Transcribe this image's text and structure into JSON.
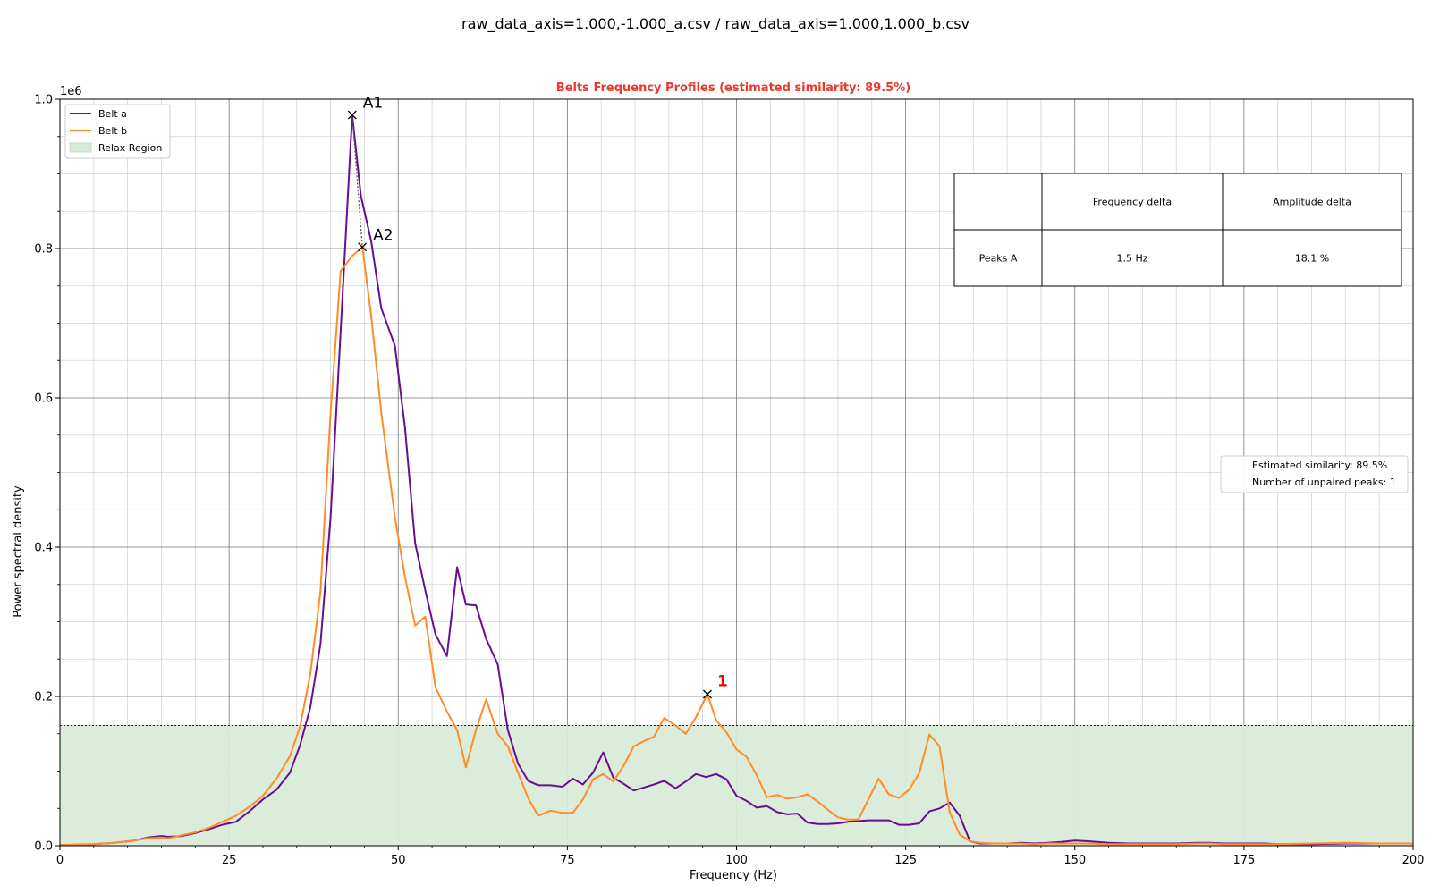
{
  "figure_title": "raw_data_axis=1.000,-1.000_a.csv / raw_data_axis=1.000,1.000_b.csv",
  "colors": {
    "belt_a": "#6a0d91",
    "belt_b": "#ff8c26",
    "relax_fill": "#d9ebd8",
    "relax_edge": "#b9d8b6",
    "title": "#e8392a",
    "unpaired": "#ff0000",
    "grid_major": "#777777",
    "grid_minor": "#d4d4d4"
  },
  "legend": {
    "items": [
      {
        "label": "Belt a",
        "kind": "line",
        "color_key": "belt_a"
      },
      {
        "label": "Belt b",
        "kind": "line",
        "color_key": "belt_b"
      },
      {
        "label": "Relax Region",
        "kind": "patch",
        "color_key": "relax_fill"
      }
    ]
  },
  "info_box": {
    "lines": [
      "Estimated similarity: 89.5%",
      "Number of unpaired peaks: 1"
    ]
  },
  "peak_table": {
    "headers": [
      "",
      "Frequency delta",
      "Amplitude delta"
    ],
    "rows": [
      [
        "Peaks A",
        "1.5 Hz",
        "18.1 %"
      ]
    ]
  },
  "chart_data": {
    "type": "line",
    "title": "Belts Frequency Profiles (estimated similarity: 89.5%)",
    "xlabel": "Frequency (Hz)",
    "ylabel": "Power spectral density",
    "y_offset_text": "1e6",
    "xlim": [
      0,
      200
    ],
    "ylim": [
      0,
      1.0
    ],
    "xticks": [
      0,
      25,
      50,
      75,
      100,
      125,
      150,
      175,
      200
    ],
    "xtick_labels": [
      "0",
      "25",
      "50",
      "75",
      "100",
      "125",
      "150",
      "175",
      "200"
    ],
    "yticks": [
      0.0,
      0.2,
      0.4,
      0.6,
      0.8,
      1.0
    ],
    "ytick_labels": [
      "0.0",
      "0.2",
      "0.4",
      "0.6",
      "0.8",
      "1.0"
    ],
    "grid": "major and minor",
    "legend_position": "upper-left",
    "relax_region": {
      "y_max": 0.161,
      "x_range": [
        0,
        200
      ]
    },
    "series": [
      {
        "name": "Belt a",
        "color_key": "belt_a",
        "x": [
          0,
          5,
          8,
          11,
          13,
          15,
          16,
          18,
          20,
          22,
          24,
          26,
          28,
          30,
          32,
          34,
          35.5,
          37,
          38.5,
          40,
          41.5,
          43.2,
          44.5,
          46,
          47.5,
          49.5,
          51,
          52.5,
          54,
          55.5,
          57.2,
          58.7,
          60,
          61.5,
          63,
          64.7,
          66.2,
          67.7,
          69.2,
          70.7,
          72.5,
          74.3,
          75.8,
          77.3,
          78.8,
          80.3,
          81.8,
          83.3,
          84.8,
          86.3,
          87.8,
          89.3,
          91,
          92.5,
          94,
          95.5,
          97,
          98.5,
          100,
          101.5,
          103,
          104.5,
          106,
          107.5,
          109,
          110.5,
          112,
          113.5,
          115,
          116.5,
          118,
          119.5,
          121,
          122.5,
          124,
          125.5,
          127,
          128.5,
          130,
          131.5,
          133,
          134.5,
          136,
          138,
          140,
          142,
          144,
          146,
          148,
          150,
          152,
          155,
          158,
          162,
          165,
          168,
          170,
          172,
          175,
          178,
          180,
          185,
          190,
          195,
          200
        ],
        "y": [
          0.001,
          0.002,
          0.004,
          0.007,
          0.011,
          0.013,
          0.012,
          0.013,
          0.017,
          0.022,
          0.028,
          0.032,
          0.046,
          0.062,
          0.075,
          0.098,
          0.135,
          0.185,
          0.27,
          0.44,
          0.69,
          0.979,
          0.87,
          0.81,
          0.72,
          0.67,
          0.56,
          0.405,
          0.342,
          0.283,
          0.254,
          0.373,
          0.323,
          0.322,
          0.277,
          0.243,
          0.155,
          0.11,
          0.087,
          0.081,
          0.081,
          0.079,
          0.09,
          0.082,
          0.098,
          0.125,
          0.091,
          0.083,
          0.074,
          0.078,
          0.082,
          0.087,
          0.077,
          0.086,
          0.096,
          0.092,
          0.096,
          0.089,
          0.067,
          0.06,
          0.051,
          0.053,
          0.045,
          0.042,
          0.043,
          0.031,
          0.029,
          0.029,
          0.03,
          0.032,
          0.033,
          0.034,
          0.034,
          0.034,
          0.028,
          0.028,
          0.03,
          0.046,
          0.05,
          0.058,
          0.04,
          0.006,
          0.003,
          0.003,
          0.003,
          0.004,
          0.003,
          0.004,
          0.005,
          0.007,
          0.006,
          0.004,
          0.003,
          0.003,
          0.003,
          0.004,
          0.004,
          0.003,
          0.003,
          0.003,
          0.002,
          0.002,
          0.003,
          0.003,
          0.003
        ]
      },
      {
        "name": "Belt b",
        "color_key": "belt_b",
        "x": [
          0,
          5,
          8,
          11,
          13,
          15,
          16,
          18,
          20,
          22,
          24,
          26,
          28,
          30,
          32,
          34,
          35.5,
          37,
          38.5,
          40,
          41.5,
          43.2,
          44.7,
          46,
          47.5,
          49.5,
          51,
          52.5,
          54,
          55.5,
          57.2,
          58.7,
          60,
          61.5,
          63,
          64.7,
          66.2,
          67.7,
          69.2,
          70.7,
          72.5,
          74.3,
          75.8,
          77.3,
          78.8,
          80.3,
          81.8,
          83.3,
          84.8,
          86.3,
          87.8,
          89.3,
          91,
          92.5,
          94,
          95.7,
          97,
          98.5,
          100,
          101.5,
          103,
          104.5,
          106,
          107.5,
          109,
          110.5,
          112,
          113.5,
          115,
          116.5,
          118,
          119.5,
          121,
          122.5,
          124,
          125.5,
          127,
          128.5,
          130,
          131.5,
          133,
          134.5,
          136,
          138,
          140,
          142,
          144,
          146,
          148,
          150,
          152,
          155,
          158,
          162,
          165,
          168,
          170,
          172,
          175,
          178,
          180,
          185,
          190,
          195,
          200
        ],
        "y": [
          0.001,
          0.002,
          0.004,
          0.007,
          0.01,
          0.011,
          0.01,
          0.014,
          0.018,
          0.024,
          0.032,
          0.04,
          0.052,
          0.067,
          0.09,
          0.12,
          0.16,
          0.23,
          0.34,
          0.58,
          0.77,
          0.79,
          0.802,
          0.71,
          0.58,
          0.44,
          0.36,
          0.295,
          0.307,
          0.212,
          0.18,
          0.155,
          0.105,
          0.155,
          0.196,
          0.15,
          0.133,
          0.098,
          0.064,
          0.04,
          0.047,
          0.044,
          0.044,
          0.062,
          0.089,
          0.096,
          0.086,
          0.107,
          0.133,
          0.14,
          0.146,
          0.171,
          0.161,
          0.15,
          0.172,
          0.203,
          0.168,
          0.152,
          0.129,
          0.119,
          0.094,
          0.065,
          0.068,
          0.063,
          0.065,
          0.069,
          0.059,
          0.048,
          0.038,
          0.035,
          0.035,
          0.062,
          0.09,
          0.069,
          0.064,
          0.075,
          0.097,
          0.149,
          0.133,
          0.045,
          0.015,
          0.006,
          0.004,
          0.003,
          0.003,
          0.003,
          0.002,
          0.003,
          0.003,
          0.003,
          0.003,
          0.002,
          0.002,
          0.002,
          0.002,
          0.003,
          0.003,
          0.002,
          0.002,
          0.002,
          0.002,
          0.003,
          0.004,
          0.003,
          0.003
        ]
      }
    ],
    "paired_peaks": [
      {
        "label": "A1",
        "x": 43.2,
        "y": 0.979
      },
      {
        "label": "A2",
        "x": 44.7,
        "y": 0.802
      }
    ],
    "unpaired_peaks": [
      {
        "label": "1",
        "x": 95.7,
        "y": 0.203
      }
    ]
  }
}
